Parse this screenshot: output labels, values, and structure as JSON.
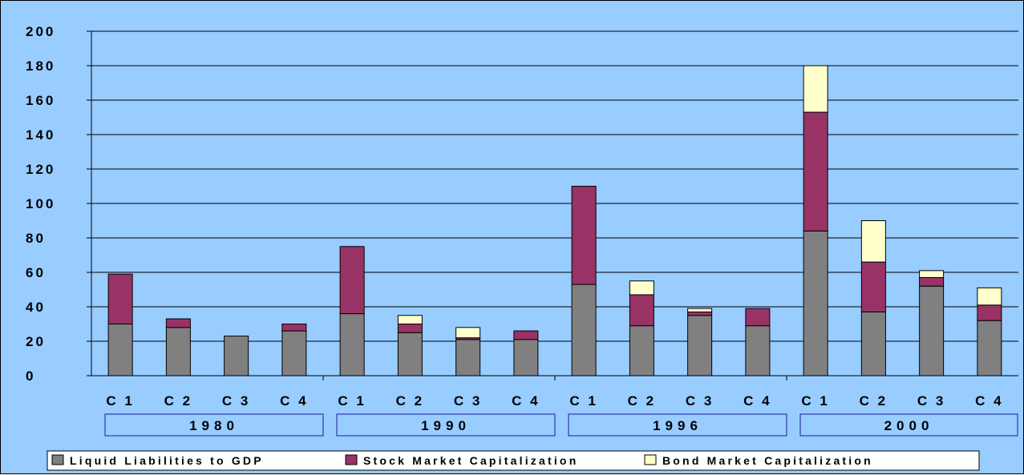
{
  "chart_data": {
    "type": "bar",
    "stacked": true,
    "title": "",
    "xlabel": "",
    "ylabel": "",
    "ylim": [
      0,
      200
    ],
    "yticks": [
      0,
      20,
      40,
      60,
      80,
      100,
      120,
      140,
      160,
      180,
      200
    ],
    "grid": true,
    "legend_position": "bottom",
    "groups": [
      {
        "label": "1980",
        "categories": [
          "C 1",
          "C 2",
          "C 3",
          "C 4"
        ]
      },
      {
        "label": "1990",
        "categories": [
          "C 1",
          "C 2",
          "C 3",
          "C 4"
        ]
      },
      {
        "label": "1996",
        "categories": [
          "C 1",
          "C 2",
          "C 3",
          "C 4"
        ]
      },
      {
        "label": "2000",
        "categories": [
          "C 1",
          "C 2",
          "C 3",
          "C 4"
        ]
      }
    ],
    "categories": [
      "C 1",
      "C 2",
      "C 3",
      "C 4",
      "C 1",
      "C 2",
      "C 3",
      "C 4",
      "C 1",
      "C 2",
      "C 3",
      "C 4",
      "C 1",
      "C 2",
      "C 3",
      "C 4"
    ],
    "series": [
      {
        "name": "Liquid Liabilities to GDP",
        "color": "#808080",
        "values": [
          30,
          28,
          23,
          26,
          36,
          25,
          21,
          21,
          53,
          29,
          35,
          29,
          84,
          37,
          52,
          32
        ]
      },
      {
        "name": "Stock Market Capitalization",
        "color": "#993366",
        "values": [
          29,
          5,
          0,
          4,
          39,
          5,
          1,
          5,
          57,
          18,
          2,
          10,
          69,
          29,
          5,
          9
        ]
      },
      {
        "name": "Bond Market Capitalization",
        "color": "#ffffcc",
        "values": [
          0,
          0,
          0,
          0,
          0,
          5,
          6,
          0,
          0,
          8,
          2,
          0,
          27,
          24,
          4,
          10
        ]
      }
    ]
  }
}
